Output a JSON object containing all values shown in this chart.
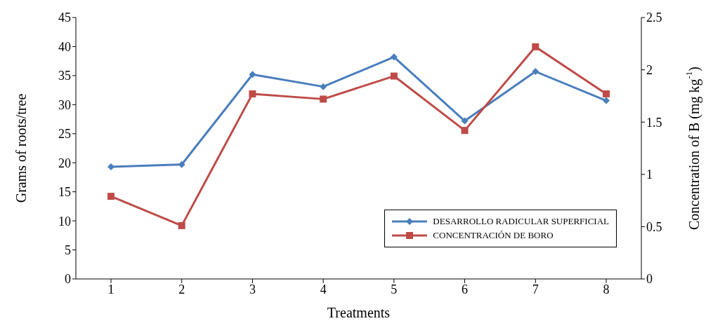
{
  "chart_data": {
    "type": "line",
    "xlabel": "Treatments",
    "ylabel": "Grams of roots/tree",
    "y2label": "Concentration of B (mg kg$^{-1}$)",
    "categories": [
      "1",
      "2",
      "3",
      "4",
      "5",
      "6",
      "7",
      "8"
    ],
    "series": [
      {
        "name": "DESARROLLO RADICULAR SUPERFICIAL",
        "color": "#4a7ebb",
        "marker": "diamond",
        "values": [
          19.3,
          19.7,
          35.2,
          33.1,
          38.2,
          27.2,
          35.7,
          30.7
        ]
      },
      {
        "name": "CONCENTRACIÓN DE BORO",
        "color": "#be4b48",
        "marker": "square",
        "axis": "y2",
        "values": [
          0.79,
          0.51,
          1.77,
          1.72,
          1.94,
          1.42,
          2.22,
          1.77
        ]
      }
    ],
    "ylim": [
      0,
      45
    ],
    "yticks": [
      0,
      5,
      10,
      15,
      20,
      25,
      30,
      35,
      40,
      45
    ],
    "y2lim": [
      0,
      2.5
    ],
    "y2ticks": [
      0,
      0.5,
      1,
      1.5,
      2,
      2.5
    ],
    "legend": "bottom right",
    "line_style": "solid"
  }
}
